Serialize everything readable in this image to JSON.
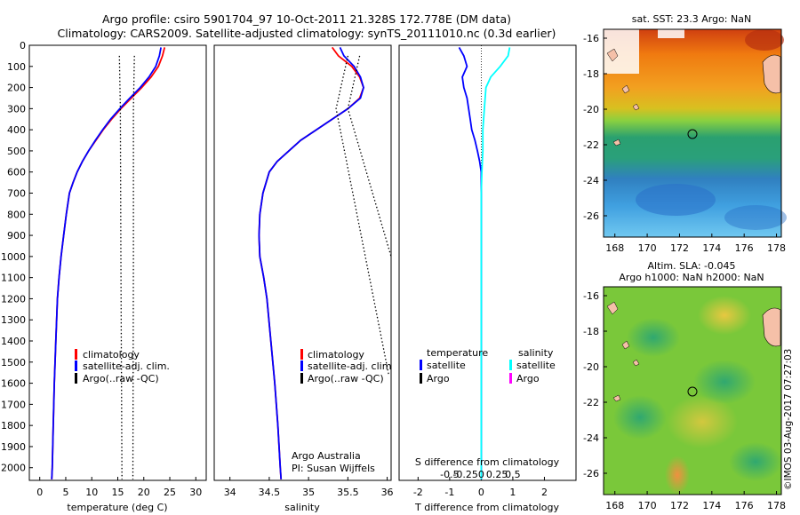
{
  "header": {
    "line1": "Argo profile: csiro 5901704_97  10-Oct-2011 21.328S 172.778E (DM data)",
    "line2": "Climatology: CARS2009. Satellite-adjusted climatology: synTS_20111010.nc (0.3d earlier)"
  },
  "depth_ticks": [
    "0",
    "100",
    "200",
    "300",
    "400",
    "500",
    "600",
    "700",
    "800",
    "900",
    "1000",
    "1100",
    "1200",
    "1300",
    "1400",
    "1500",
    "1600",
    "1700",
    "1800",
    "1900",
    "2000"
  ],
  "colors": {
    "climatology": "#ff0000",
    "satellite_adj": "#0000ff",
    "argo_raw": "#000000",
    "argo_salinity": "#ff00ff",
    "satellite_salinity": "#00ffff"
  },
  "panels": {
    "temperature": {
      "xlabel": "temperature (deg C)",
      "ticks": [
        "0",
        "5",
        "10",
        "15",
        "20",
        "25",
        "30"
      ],
      "legend": [
        "climatology",
        "satellite-adj. clim.",
        "Argo(..raw -QC)"
      ]
    },
    "salinity": {
      "xlabel": "salinity",
      "ticks": [
        "34",
        "34.5",
        "35",
        "35.5",
        "36"
      ],
      "legend": [
        "climatology",
        "satellite-adj. clim",
        "Argo(..raw -QC)"
      ],
      "credit1": "Argo Australia",
      "credit2": "PI: Susan Wijffels"
    },
    "difference": {
      "legend_temp_title": "temperature",
      "legend_sal_title": "salinity",
      "legend_temp": [
        "satellite",
        "Argo"
      ],
      "legend_sal": [
        "satellite",
        "Argo"
      ],
      "s_title": "S difference from climatology",
      "s_ticks": [
        "-0.5",
        "-0.25",
        "0",
        "0.25",
        "0.5"
      ],
      "t_ticks": [
        "-2",
        "-1",
        "0",
        "1",
        "2"
      ],
      "xlabel": "T difference from climatology"
    }
  },
  "maps": {
    "sst_title": "sat. SST: 23.3  Argo: NaN",
    "sla_title1": "Altim. SLA: -0.045",
    "sla_title2": "Argo h1000: NaN h2000: NaN",
    "lat_ticks": [
      "-16",
      "-18",
      "-20",
      "-22",
      "-24",
      "-26"
    ],
    "lon_ticks": [
      "168",
      "170",
      "172",
      "174",
      "176",
      "178"
    ]
  },
  "footer": {
    "stamp": "©IMOS 03-Aug-2017 07:27:03"
  },
  "chart_data": [
    {
      "type": "line",
      "name": "temperature",
      "xlabel": "temperature (deg C)",
      "ylabel": "",
      "xlim": [
        -2,
        32
      ],
      "ylim": [
        2060,
        0
      ],
      "series": [
        {
          "name": "climatology",
          "points": [
            [
              24,
              10
            ],
            [
              23.6,
              50
            ],
            [
              22.8,
              100
            ],
            [
              21.4,
              150
            ],
            [
              19.6,
              200
            ],
            [
              17.6,
              250
            ],
            [
              15.6,
              300
            ],
            [
              13.8,
              350
            ],
            [
              12.2,
              400
            ],
            [
              10.8,
              450
            ],
            [
              9.4,
              500
            ],
            [
              8.2,
              550
            ],
            [
              7.2,
              600
            ],
            [
              6.4,
              650
            ],
            [
              5.7,
              700
            ],
            [
              5.1,
              800
            ],
            [
              4.6,
              900
            ],
            [
              4.1,
              1000
            ],
            [
              3.7,
              1100
            ],
            [
              3.4,
              1200
            ],
            [
              3.1,
              1400
            ],
            [
              2.8,
              1600
            ],
            [
              2.6,
              1800
            ],
            [
              2.4,
              2000
            ],
            [
              2.3,
              2055
            ]
          ]
        },
        {
          "name": "satellite-adj. clim.",
          "points": [
            [
              23.3,
              10
            ],
            [
              23.0,
              50
            ],
            [
              22.3,
              100
            ],
            [
              21.0,
              150
            ],
            [
              19.3,
              200
            ],
            [
              17.3,
              250
            ],
            [
              15.4,
              300
            ],
            [
              13.6,
              350
            ],
            [
              12.1,
              400
            ],
            [
              10.7,
              450
            ],
            [
              9.4,
              500
            ],
            [
              8.2,
              550
            ],
            [
              7.2,
              600
            ],
            [
              6.4,
              650
            ],
            [
              5.7,
              700
            ],
            [
              5.1,
              800
            ],
            [
              4.6,
              900
            ],
            [
              4.1,
              1000
            ],
            [
              3.7,
              1100
            ],
            [
              3.4,
              1200
            ],
            [
              3.1,
              1400
            ],
            [
              2.8,
              1600
            ],
            [
              2.6,
              1800
            ],
            [
              2.4,
              2000
            ],
            [
              2.3,
              2055
            ]
          ]
        },
        {
          "name": "Argo(..raw -QC) a",
          "points": [
            [
              15.3,
              50
            ],
            [
              15.5,
              300
            ],
            [
              15.6,
              1000
            ],
            [
              15.8,
              2055
            ]
          ]
        },
        {
          "name": "Argo(..raw -QC) b",
          "points": [
            [
              18.2,
              50
            ],
            [
              18.0,
              300
            ],
            [
              18.0,
              1000
            ],
            [
              17.9,
              2055
            ]
          ]
        }
      ]
    },
    {
      "type": "line",
      "name": "salinity",
      "xlabel": "salinity",
      "ylabel": "",
      "xlim": [
        33.8,
        36.05
      ],
      "ylim": [
        2060,
        0
      ],
      "series": [
        {
          "name": "climatology",
          "points": [
            [
              35.3,
              10
            ],
            [
              35.38,
              50
            ],
            [
              35.55,
              100
            ],
            [
              35.65,
              150
            ],
            [
              35.7,
              200
            ],
            [
              35.65,
              250
            ],
            [
              35.5,
              300
            ],
            [
              35.3,
              350
            ],
            [
              35.1,
              400
            ],
            [
              34.9,
              450
            ],
            [
              34.75,
              500
            ],
            [
              34.6,
              550
            ],
            [
              34.5,
              600
            ],
            [
              34.42,
              700
            ],
            [
              34.38,
              800
            ],
            [
              34.37,
              900
            ],
            [
              34.38,
              1000
            ],
            [
              34.43,
              1100
            ],
            [
              34.47,
              1200
            ],
            [
              34.52,
              1400
            ],
            [
              34.57,
              1600
            ],
            [
              34.61,
              1800
            ],
            [
              34.64,
              2000
            ],
            [
              34.65,
              2055
            ]
          ]
        },
        {
          "name": "satellite-adj. clim",
          "points": [
            [
              35.4,
              10
            ],
            [
              35.45,
              50
            ],
            [
              35.58,
              100
            ],
            [
              35.66,
              150
            ],
            [
              35.7,
              200
            ],
            [
              35.66,
              250
            ],
            [
              35.5,
              300
            ],
            [
              35.3,
              350
            ],
            [
              35.1,
              400
            ],
            [
              34.9,
              450
            ],
            [
              34.75,
              500
            ],
            [
              34.6,
              550
            ],
            [
              34.5,
              600
            ],
            [
              34.42,
              700
            ],
            [
              34.38,
              800
            ],
            [
              34.37,
              900
            ],
            [
              34.38,
              1000
            ],
            [
              34.43,
              1100
            ],
            [
              34.47,
              1200
            ],
            [
              34.52,
              1400
            ],
            [
              34.57,
              1600
            ],
            [
              34.61,
              1800
            ],
            [
              34.64,
              2000
            ],
            [
              34.65,
              2055
            ]
          ]
        },
        {
          "name": "Argo(..raw -QC) a",
          "points": [
            [
              35.5,
              50
            ],
            [
              35.35,
              300
            ],
            [
              36.02,
              1560
            ]
          ]
        },
        {
          "name": "Argo(..raw -QC) b",
          "points": [
            [
              35.65,
              50
            ],
            [
              35.5,
              300
            ],
            [
              36.05,
              1000
            ]
          ]
        }
      ]
    },
    {
      "type": "line",
      "name": "difference",
      "xlabel": "T difference from climatology",
      "ylabel": "",
      "xlim": [
        -2.6,
        3.0
      ],
      "ylim": [
        2060,
        0
      ],
      "series": [
        {
          "name": "temperature satellite",
          "points": [
            [
              -0.7,
              10
            ],
            [
              -0.55,
              50
            ],
            [
              -0.45,
              100
            ],
            [
              -0.6,
              150
            ],
            [
              -0.55,
              200
            ],
            [
              -0.45,
              250
            ],
            [
              -0.4,
              300
            ],
            [
              -0.35,
              350
            ],
            [
              -0.3,
              400
            ],
            [
              -0.2,
              450
            ],
            [
              -0.12,
              500
            ],
            [
              -0.05,
              550
            ],
            [
              0.0,
              600
            ],
            [
              0.0,
              2055
            ]
          ]
        },
        {
          "name": "salinity satellite",
          "points": [
            [
              0.9,
              10
            ],
            [
              0.85,
              50
            ],
            [
              0.6,
              100
            ],
            [
              0.3,
              150
            ],
            [
              0.15,
              200
            ],
            [
              0.1,
              300
            ],
            [
              0.05,
              400
            ],
            [
              0.05,
              500
            ],
            [
              0.02,
              600
            ],
            [
              0.0,
              700
            ],
            [
              0.0,
              2055
            ]
          ]
        }
      ]
    }
  ]
}
